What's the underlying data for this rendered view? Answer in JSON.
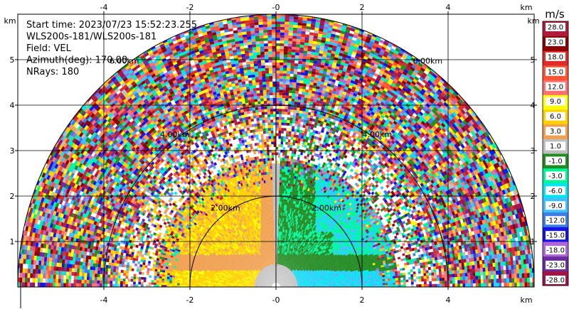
{
  "chart_data": {
    "type": "heatmap",
    "info": [
      "Start time: 2023/07/23 15:52:23.255",
      "WLS200s-181/WLS200s-181",
      "Field: VEL",
      "Azimuth(deg): 170.00",
      "NRays: 180"
    ],
    "x_unit": "km",
    "y_unit": "km",
    "xlim": [
      -6.0,
      6.0
    ],
    "ylim": [
      0.0,
      6.0
    ],
    "x_ticks": [
      -4,
      -2,
      0,
      2,
      4
    ],
    "x_tick_labels": [
      "-4",
      "-2",
      "-0",
      "2",
      "4"
    ],
    "y_ticks": [
      1,
      2,
      3,
      4,
      5
    ],
    "y_tick_labels": [
      "1",
      "2",
      "3",
      "4",
      "5"
    ],
    "grid": true,
    "range_rings_km": [
      2,
      4,
      6
    ],
    "range_ring_labels": [
      "2.00km",
      "4.00km",
      "6.00km"
    ],
    "max_range_km": 6.0,
    "colorbar": {
      "unit": "m/s",
      "ticks": [
        "-28.0",
        "-23.0",
        "-18.0",
        "-15.0",
        "-12.0",
        "-9.0",
        "-6.0",
        "-3.0",
        "-1.0",
        "1.0",
        "3.0",
        "6.0",
        "9.0",
        "12.0",
        "15.0",
        "18.0",
        "23.0",
        "28.0"
      ],
      "colors": [
        "#a0144a",
        "#6a2c9e",
        "#b066d9",
        "#1414e6",
        "#3d7ee6",
        "#40bfff",
        "#00e5ee",
        "#00f598",
        "#228b22",
        "#bfbfbf",
        "#f0a050",
        "#ffd000",
        "#ffff00",
        "#ff7070",
        "#ff5533",
        "#e02b2b",
        "#8b0000",
        "#b01c3c"
      ]
    }
  }
}
